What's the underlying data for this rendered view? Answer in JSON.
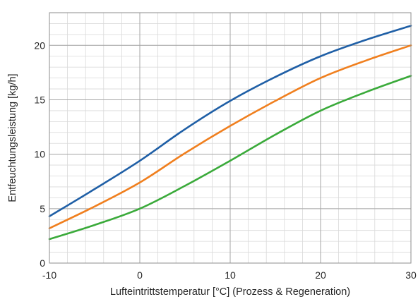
{
  "chart_data": {
    "type": "line",
    "title": "",
    "xlabel": "Lufteintrittstemperatur [°C] (Prozess & Regeneration)",
    "ylabel": "Entfeuchtungsleistung [kg/h]",
    "xlim": [
      -10,
      30
    ],
    "ylim": [
      0,
      23
    ],
    "x_ticks": [
      -10,
      0,
      10,
      20,
      30
    ],
    "y_ticks": [
      0,
      5,
      10,
      15,
      20
    ],
    "grid": true,
    "minor_grid_step_x": 2,
    "minor_grid_step_y": 1,
    "legend": "none",
    "series": [
      {
        "color": "#1f5fa6",
        "points": [
          [
            -10,
            4.3
          ],
          [
            -5,
            6.8
          ],
          [
            0,
            9.4
          ],
          [
            5,
            12.3
          ],
          [
            10,
            14.9
          ],
          [
            15,
            17.1
          ],
          [
            20,
            19.0
          ],
          [
            25,
            20.5
          ],
          [
            30,
            21.8
          ]
        ]
      },
      {
        "color": "#f07f1e",
        "points": [
          [
            -10,
            3.2
          ],
          [
            -5,
            5.2
          ],
          [
            0,
            7.4
          ],
          [
            5,
            10.1
          ],
          [
            10,
            12.6
          ],
          [
            15,
            14.9
          ],
          [
            20,
            17.0
          ],
          [
            25,
            18.6
          ],
          [
            30,
            20.0
          ]
        ]
      },
      {
        "color": "#3aaa3a",
        "points": [
          [
            -10,
            2.2
          ],
          [
            -5,
            3.5
          ],
          [
            0,
            5.0
          ],
          [
            5,
            7.1
          ],
          [
            10,
            9.4
          ],
          [
            15,
            11.8
          ],
          [
            20,
            14.0
          ],
          [
            25,
            15.7
          ],
          [
            30,
            17.2
          ]
        ]
      }
    ]
  }
}
